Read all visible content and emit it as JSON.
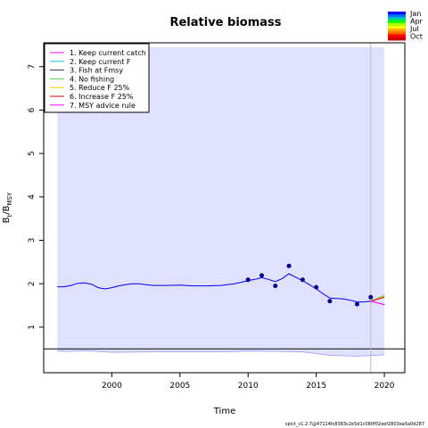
{
  "chart_data": {
    "type": "line",
    "title": "Relative biomass",
    "xlabel": "Time",
    "ylabel": {
      "base": "B",
      "sub1": "t",
      "mid": "/B",
      "sub2": "MSY"
    },
    "xlim": [
      1995.0,
      2021.5
    ],
    "ylim": [
      -0.05,
      7.55
    ],
    "x_ticks": [
      2000,
      2005,
      2010,
      2015,
      2020
    ],
    "y_ticks": [
      1,
      2,
      3,
      4,
      5,
      6,
      7
    ],
    "reference_line_y": 0.5,
    "vertical_line_x": 2019,
    "confidence_band": {
      "x": [
        1996,
        1997,
        1998,
        2000,
        2003,
        2005,
        2008,
        2010,
        2012,
        2014,
        2016,
        2018,
        2020
      ],
      "lower": [
        0.45,
        0.44,
        0.46,
        0.42,
        0.43,
        0.43,
        0.43,
        0.45,
        0.44,
        0.43,
        0.35,
        0.33,
        0.36
      ],
      "upper": [
        7.45,
        7.45,
        7.45,
        7.45,
        7.45,
        7.45,
        7.45,
        7.45,
        7.45,
        7.45,
        7.45,
        7.45,
        7.45
      ]
    },
    "estimate": {
      "color": "#0000ee",
      "x": [
        1996,
        1996.5,
        1997,
        1997.5,
        1998,
        1998.5,
        1999,
        1999.5,
        2000,
        2000.5,
        2001,
        2001.5,
        2002,
        2002.5,
        2003,
        2004,
        2005,
        2006,
        2007,
        2008,
        2009,
        2010,
        2010.5,
        2011,
        2011.5,
        2012,
        2012.5,
        2013,
        2013.5,
        2014,
        2014.5,
        2015,
        2015.5,
        2016,
        2016.5,
        2017,
        2017.5,
        2018,
        2018.5,
        2019
      ],
      "y": [
        1.93,
        1.93,
        1.96,
        2.01,
        2.02,
        1.99,
        1.91,
        1.88,
        1.91,
        1.95,
        1.98,
        2.0,
        2.0,
        1.98,
        1.96,
        1.96,
        1.97,
        1.95,
        1.95,
        1.96,
        2.0,
        2.07,
        2.1,
        2.14,
        2.1,
        2.05,
        2.12,
        2.23,
        2.15,
        2.07,
        1.98,
        1.88,
        1.77,
        1.67,
        1.66,
        1.65,
        1.62,
        1.58,
        1.58,
        1.6
      ]
    },
    "observations": {
      "color": "#000088",
      "x": [
        2010,
        2011,
        2012,
        2013,
        2014,
        2015,
        2016,
        2018,
        2019
      ],
      "y": [
        2.09,
        2.19,
        1.95,
        2.41,
        2.09,
        1.92,
        1.6,
        1.53,
        1.69
      ]
    },
    "series": [
      {
        "name": "1. Keep current catch",
        "color": "#ff00ff",
        "x": [
          2019,
          2020
        ],
        "y": [
          1.6,
          1.52
        ]
      },
      {
        "name": "2. Keep current F",
        "color": "#00cccc",
        "x": [
          2019,
          2020
        ],
        "y": [
          1.6,
          1.7
        ]
      },
      {
        "name": "3. Fish at Fmsy",
        "color": "#333366",
        "x": [
          2019,
          2020
        ],
        "y": [
          1.6,
          1.7
        ]
      },
      {
        "name": "4. No fishing",
        "color": "#55cc55",
        "x": [
          2019,
          2020
        ],
        "y": [
          1.6,
          1.73
        ]
      },
      {
        "name": "5. Reduce F 25%",
        "color": "#ffcc00",
        "x": [
          2019,
          2020
        ],
        "y": [
          1.6,
          1.71
        ]
      },
      {
        "name": "6. Increase F 25%",
        "color": "#cc0000",
        "x": [
          2019,
          2020
        ],
        "y": [
          1.6,
          1.69
        ]
      },
      {
        "name": "7. MSY advice rule",
        "color": "#ff00ff",
        "x": [
          2019,
          2020
        ],
        "y": [
          1.6,
          1.52
        ]
      }
    ],
    "legend_placement": "top-left",
    "season_legend": {
      "labels": [
        "Jan",
        "Apr",
        "Jul",
        "Oct"
      ],
      "colors": [
        "#0000ff",
        "#0077ff",
        "#00ccaa",
        "#00ff00",
        "#aaff00",
        "#ffff00",
        "#ffaa00",
        "#ff6600",
        "#ff0000",
        "#cc0000"
      ]
    }
  },
  "footer": "spict_v1.2.7@47114fc8383c2e5d1c080f02eef2803ea5a0d287"
}
